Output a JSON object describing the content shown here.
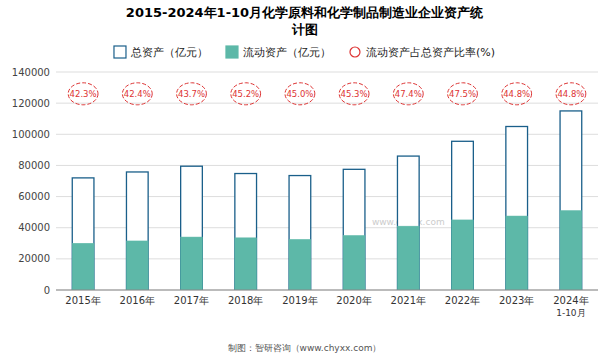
{
  "chart_data": {
    "type": "bar",
    "title": "2015-2024年1-10月化学原料和化学制品制造业企业资产统\n计图",
    "categories": [
      "2015年",
      "2016年",
      "2017年",
      "2018年",
      "2019年",
      "2020年",
      "2021年",
      "2022年",
      "2023年",
      "2024年\n1-10月"
    ],
    "series": [
      {
        "name": "总资产（亿元）",
        "color": "#1a5f8a",
        "values": [
          72000,
          75800,
          79500,
          74800,
          73500,
          77500,
          86000,
          95500,
          105000,
          115000
        ]
      },
      {
        "name": "流动资产（亿元）",
        "color": "#5db8a8",
        "values": [
          30000,
          31500,
          34000,
          33500,
          32500,
          35000,
          41000,
          45000,
          47500,
          51000
        ]
      },
      {
        "name": "流动资产占总资产比率(%)",
        "type": "label",
        "marker": "circle",
        "color": "#dd3333",
        "values": [
          42.3,
          42.4,
          43.7,
          45.2,
          45.0,
          45.3,
          47.4,
          47.5,
          44.8,
          44.8
        ],
        "value_labels": [
          "42.3%",
          "42.4%",
          "43.7%",
          "45.2%",
          "45.0%",
          "45.3%",
          "47.4%",
          "47.5%",
          "44.8%",
          "44.8%"
        ]
      }
    ],
    "ylim": [
      0,
      140000
    ],
    "yticks": [
      0,
      20000,
      40000,
      60000,
      80000,
      100000,
      120000,
      140000
    ],
    "grid": true,
    "legend": "top",
    "annotations": [
      "制图：智研咨询（www.chyxx.com）",
      "www.chyxx.com"
    ]
  }
}
